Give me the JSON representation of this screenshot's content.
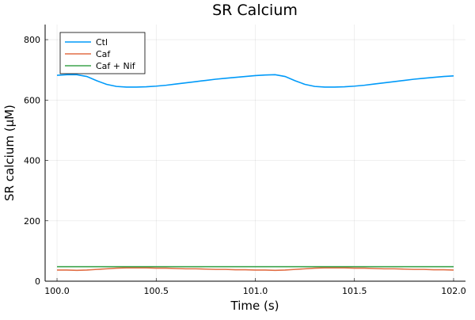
{
  "chart_data": {
    "type": "line",
    "title": "SR Calcium",
    "xlabel": "Time (s)",
    "ylabel": "SR calcium (μM)",
    "x": [
      100.0,
      100.05,
      100.1,
      100.15,
      100.2,
      100.25,
      100.3,
      100.35,
      100.4,
      100.45,
      100.5,
      100.55,
      100.6,
      100.65,
      100.7,
      100.75,
      100.8,
      100.85,
      100.9,
      100.95,
      101.0,
      101.05,
      101.1,
      101.15,
      101.2,
      101.25,
      101.3,
      101.35,
      101.4,
      101.45,
      101.5,
      101.55,
      101.6,
      101.65,
      101.7,
      101.75,
      101.8,
      101.85,
      101.9,
      101.95,
      102.0
    ],
    "series": [
      {
        "name": "Ctl",
        "color": "#009af9",
        "values": [
          682,
          684,
          684,
          678,
          664,
          652,
          645,
          643,
          643,
          644,
          646,
          649,
          653,
          657,
          661,
          665,
          669,
          672,
          675,
          678,
          681,
          683,
          684,
          678,
          664,
          652,
          645,
          643,
          643,
          644,
          646,
          649,
          653,
          657,
          661,
          665,
          669,
          672,
          675,
          678,
          680
        ]
      },
      {
        "name": "Caf",
        "color": "#e26f46",
        "values": [
          37,
          37,
          36,
          37,
          39,
          41,
          43,
          44,
          44,
          44,
          43,
          43,
          42,
          41,
          41,
          40,
          39,
          39,
          38,
          38,
          37,
          37,
          36,
          37,
          39,
          41,
          43,
          44,
          44,
          44,
          43,
          43,
          42,
          41,
          41,
          40,
          39,
          39,
          38,
          38,
          37
        ]
      },
      {
        "name": "Caf + Nif",
        "color": "#3da44d",
        "values": [
          48,
          48,
          48,
          48,
          48,
          48,
          48,
          48,
          48,
          48,
          48,
          48,
          48,
          48,
          48,
          48,
          48,
          48,
          48,
          48,
          48,
          48,
          48,
          48,
          48,
          48,
          48,
          48,
          48,
          48,
          48,
          48,
          48,
          48,
          48,
          48,
          48,
          48,
          48,
          48,
          48
        ]
      }
    ],
    "xlim": [
      99.94,
      102.06
    ],
    "ylim": [
      0,
      850
    ],
    "xticks": [
      {
        "value": 100,
        "label": "100.0"
      },
      {
        "value": 100.5,
        "label": "100.5"
      },
      {
        "value": 101,
        "label": "101.0"
      },
      {
        "value": 101.5,
        "label": "101.5"
      },
      {
        "value": 102,
        "label": "102.0"
      }
    ],
    "yticks": [
      0,
      200,
      400,
      600,
      800
    ],
    "grid": true,
    "legend_position": "top-left"
  }
}
